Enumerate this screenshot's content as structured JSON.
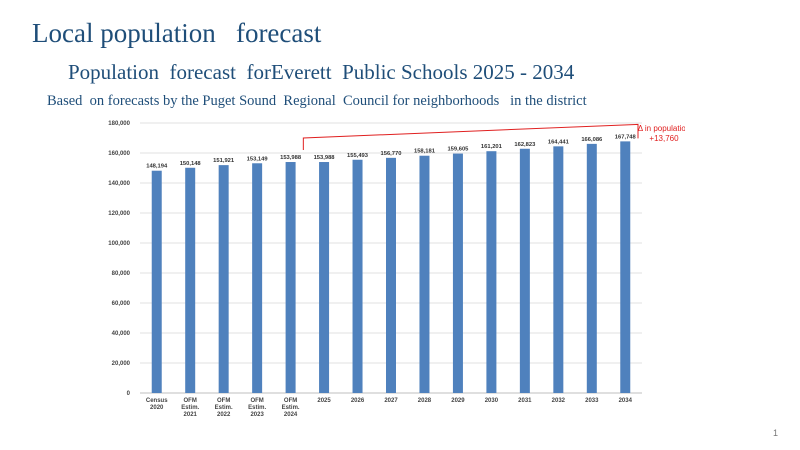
{
  "page": {
    "title": "Local population   forecast",
    "subtitle": "Population  forecast  forEverett  Public Schools 2025 - 2034",
    "caption": "Based  on forecasts by the Puget Sound  Regional  Council for neighborhoods   in the district",
    "page_number": "1"
  },
  "chart_data": {
    "type": "bar",
    "title": "",
    "xlabel": "",
    "ylabel": "",
    "ylim": [
      0,
      180000
    ],
    "yticks": [
      0,
      20000,
      40000,
      60000,
      80000,
      100000,
      120000,
      140000,
      160000,
      180000
    ],
    "ytick_labels": [
      "0",
      "20,000",
      "40,000",
      "60,000",
      "80,000",
      "100,000",
      "120,000",
      "140,000",
      "160,000",
      "180,000"
    ],
    "grid": true,
    "legend": "none",
    "bar_color": "#4f81bd",
    "categories": [
      [
        "Census",
        "2020"
      ],
      [
        "OFM",
        "Estim.",
        "2021"
      ],
      [
        "OFM",
        "Estim.",
        "2022"
      ],
      [
        "OFM",
        "Estim.",
        "2023"
      ],
      [
        "OFM",
        "Estim.",
        "2024"
      ],
      [
        "2025"
      ],
      [
        "2026"
      ],
      [
        "2027"
      ],
      [
        "2028"
      ],
      [
        "2029"
      ],
      [
        "2030"
      ],
      [
        "2031"
      ],
      [
        "2032"
      ],
      [
        "2033"
      ],
      [
        "2034"
      ]
    ],
    "values": [
      148194,
      150148,
      151921,
      153149,
      153988,
      153988,
      155493,
      156770,
      158181,
      159605,
      161201,
      162823,
      164441,
      166086,
      167748
    ],
    "value_labels": [
      "148,194",
      "150,148",
      "151,921",
      "153,149",
      "153,988",
      "153,988",
      "155,493",
      "156,770",
      "158,181",
      "159,605",
      "161,201",
      "162,823",
      "164,441",
      "166,086",
      "167,748"
    ],
    "annotation": {
      "label": "Δ in  population",
      "value": "+13,760",
      "color": "#e02020",
      "from_category": 5,
      "to_category": 14
    }
  }
}
